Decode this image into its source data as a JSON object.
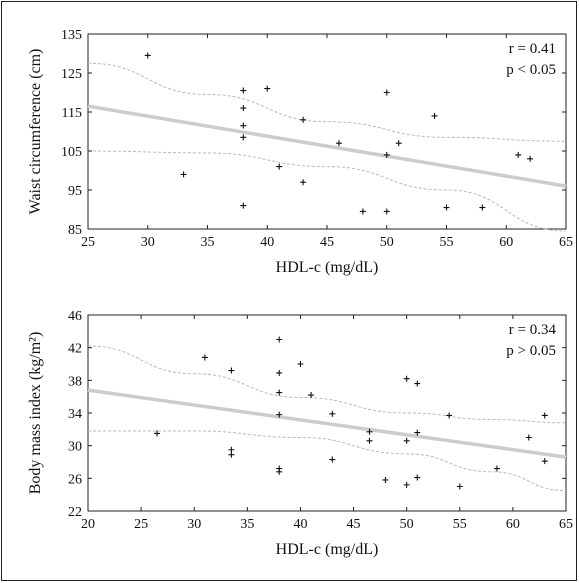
{
  "figure": {
    "colors": {
      "axis": "#222222",
      "fit_line": "#cccccc",
      "ci_line": "#b8b8b8",
      "points": "#111111"
    }
  },
  "chart_data": [
    {
      "type": "scatter",
      "title": "",
      "xlabel": "HDL-c (mg/dL)",
      "ylabel": "Waist circumference (cm)",
      "xlim": [
        25,
        65
      ],
      "ylim": [
        85,
        135
      ],
      "xticks": [
        25,
        30,
        35,
        40,
        45,
        50,
        55,
        60,
        65
      ],
      "yticks": [
        85,
        95,
        105,
        115,
        125,
        135
      ],
      "annotations": [
        "r = 0.41",
        "p < 0.05"
      ],
      "points": [
        {
          "x": 30,
          "y": 129.5
        },
        {
          "x": 33,
          "y": 99
        },
        {
          "x": 38,
          "y": 120.5
        },
        {
          "x": 38,
          "y": 116
        },
        {
          "x": 38,
          "y": 111.5
        },
        {
          "x": 38,
          "y": 108.5
        },
        {
          "x": 38,
          "y": 91
        },
        {
          "x": 40,
          "y": 121
        },
        {
          "x": 41,
          "y": 101
        },
        {
          "x": 43,
          "y": 113
        },
        {
          "x": 43,
          "y": 97
        },
        {
          "x": 46,
          "y": 107
        },
        {
          "x": 48,
          "y": 89.5
        },
        {
          "x": 50,
          "y": 120
        },
        {
          "x": 50,
          "y": 104
        },
        {
          "x": 50,
          "y": 89.5
        },
        {
          "x": 51,
          "y": 107
        },
        {
          "x": 54,
          "y": 114
        },
        {
          "x": 55,
          "y": 90.5
        },
        {
          "x": 58,
          "y": 90.5
        },
        {
          "x": 61,
          "y": 104
        },
        {
          "x": 62,
          "y": 103
        }
      ],
      "fit": {
        "x": [
          25,
          65
        ],
        "y": [
          116.5,
          96
        ]
      },
      "ci_upper": {
        "x": [
          25,
          35,
          45,
          55,
          65
        ],
        "y": [
          127.5,
          119.5,
          112.5,
          108.5,
          107.5
        ]
      },
      "ci_lower": {
        "x": [
          25,
          35,
          45,
          55,
          65
        ],
        "y": [
          105,
          104.5,
          101,
          95,
          84.5
        ]
      },
      "grid": false
    },
    {
      "type": "scatter",
      "title": "",
      "xlabel": "HDL-c (mg/dL)",
      "ylabel": "Body mass index (kg/m²)",
      "xlim": [
        20,
        65
      ],
      "ylim": [
        22,
        46
      ],
      "xticks": [
        20,
        25,
        30,
        35,
        40,
        45,
        50,
        55,
        60,
        65
      ],
      "yticks": [
        22,
        26,
        30,
        34,
        38,
        42,
        46
      ],
      "annotations": [
        "r = 0.34",
        "p > 0.05"
      ],
      "points": [
        {
          "x": 26.5,
          "y": 31.5
        },
        {
          "x": 31,
          "y": 40.8
        },
        {
          "x": 33.5,
          "y": 39.2
        },
        {
          "x": 33.5,
          "y": 29.5
        },
        {
          "x": 33.5,
          "y": 28.9
        },
        {
          "x": 38,
          "y": 43
        },
        {
          "x": 38,
          "y": 38.9
        },
        {
          "x": 38,
          "y": 36.5
        },
        {
          "x": 38,
          "y": 33.8
        },
        {
          "x": 38,
          "y": 27.2
        },
        {
          "x": 38,
          "y": 26.8
        },
        {
          "x": 40,
          "y": 40
        },
        {
          "x": 41,
          "y": 36.2
        },
        {
          "x": 43,
          "y": 33.9
        },
        {
          "x": 43,
          "y": 28.3
        },
        {
          "x": 46.5,
          "y": 31.7
        },
        {
          "x": 46.5,
          "y": 30.6
        },
        {
          "x": 48,
          "y": 25.8
        },
        {
          "x": 50,
          "y": 38.2
        },
        {
          "x": 50,
          "y": 30.6
        },
        {
          "x": 50,
          "y": 25.2
        },
        {
          "x": 51,
          "y": 37.6
        },
        {
          "x": 51,
          "y": 31.6
        },
        {
          "x": 51,
          "y": 26.1
        },
        {
          "x": 54,
          "y": 33.7
        },
        {
          "x": 55,
          "y": 25
        },
        {
          "x": 58.5,
          "y": 27.2
        },
        {
          "x": 61.5,
          "y": 31
        },
        {
          "x": 63,
          "y": 33.7
        },
        {
          "x": 63,
          "y": 28.1
        }
      ],
      "fit": {
        "x": [
          20,
          65
        ],
        "y": [
          36.8,
          28.6
        ]
      },
      "ci_upper": {
        "x": [
          20,
          30,
          40,
          50,
          58,
          65
        ],
        "y": [
          42.2,
          38.8,
          35.9,
          34,
          33.2,
          32.8
        ]
      },
      "ci_lower": {
        "x": [
          20,
          30,
          40,
          50,
          58,
          65
        ],
        "y": [
          31.8,
          31.8,
          31,
          29,
          26.8,
          24.5
        ]
      },
      "grid": false
    }
  ]
}
